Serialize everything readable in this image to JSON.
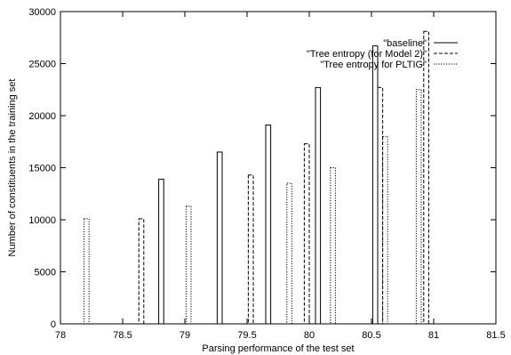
{
  "chart_data": {
    "type": "bar",
    "xlabel": "Parsing performance of the test set",
    "ylabel": "Number of constituents in the training set",
    "xlim": [
      78,
      81.5
    ],
    "ylim": [
      0,
      30000
    ],
    "xticks": [
      "78",
      "78.5",
      "79",
      "79.5",
      "80",
      "80.5",
      "81",
      "81.5"
    ],
    "yticks": [
      "0",
      "5000",
      "10000",
      "15000",
      "20000",
      "25000",
      "30000"
    ],
    "grid": false,
    "legend_position": "top-right",
    "bar_width": 0.04,
    "series": [
      {
        "name": "\"baseline\"",
        "line_style": "solid",
        "points": [
          {
            "x": 78.81,
            "y": 13900
          },
          {
            "x": 79.28,
            "y": 16500
          },
          {
            "x": 79.67,
            "y": 19100
          },
          {
            "x": 80.07,
            "y": 22700
          },
          {
            "x": 80.53,
            "y": 26700
          }
        ]
      },
      {
        "name": "\"Tree entropy (for Model 2)\"",
        "line_style": "dashed",
        "points": [
          {
            "x": 78.65,
            "y": 10100
          },
          {
            "x": 79.53,
            "y": 14300
          },
          {
            "x": 79.98,
            "y": 17300
          },
          {
            "x": 80.57,
            "y": 22700
          },
          {
            "x": 80.94,
            "y": 28100
          }
        ]
      },
      {
        "name": "\"Tree entropy for PLTIG\"",
        "line_style": "dotted",
        "points": [
          {
            "x": 78.21,
            "y": 10100
          },
          {
            "x": 79.03,
            "y": 11300
          },
          {
            "x": 79.84,
            "y": 13500
          },
          {
            "x": 80.19,
            "y": 15000
          },
          {
            "x": 80.61,
            "y": 18000
          },
          {
            "x": 80.88,
            "y": 22500
          }
        ]
      }
    ]
  }
}
